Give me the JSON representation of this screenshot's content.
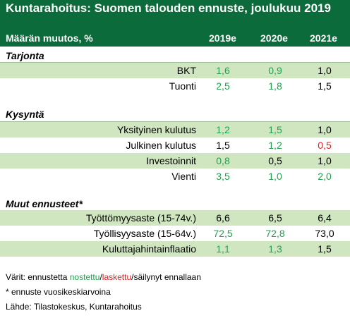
{
  "title": "Kuntarahoitus: Suomen talouden ennuste, joulukuu 2019",
  "subheader": "Määrän muutos, %",
  "columns": [
    "2019e",
    "2020e",
    "2021e"
  ],
  "sections": [
    {
      "name": "Tarjonta",
      "rows": [
        {
          "label": "BKT",
          "values": [
            "1,6",
            "0,9",
            "1,0"
          ],
          "status": [
            "up",
            "up",
            "same"
          ]
        },
        {
          "label": "Tuonti",
          "values": [
            "2,5",
            "1,8",
            "1,5"
          ],
          "status": [
            "up",
            "up",
            "same"
          ]
        }
      ]
    },
    {
      "name": "Kysyntä",
      "rows": [
        {
          "label": "Yksityinen kulutus",
          "values": [
            "1,2",
            "1,5",
            "1,0"
          ],
          "status": [
            "up",
            "up",
            "same"
          ]
        },
        {
          "label": "Julkinen kulutus",
          "values": [
            "1,5",
            "1,2",
            "0,5"
          ],
          "status": [
            "same",
            "up",
            "down"
          ]
        },
        {
          "label": "Investoinnit",
          "values": [
            "0,8",
            "0,5",
            "1,0"
          ],
          "status": [
            "up",
            "same",
            "same"
          ]
        },
        {
          "label": "Vienti",
          "values": [
            "3,5",
            "1,0",
            "2,0"
          ],
          "status": [
            "up",
            "up",
            "up"
          ]
        }
      ]
    },
    {
      "name": "Muut ennusteet*",
      "rows": [
        {
          "label": "Työttömyysaste (15-74v.)",
          "values": [
            "6,6",
            "6,5",
            "6,4"
          ],
          "status": [
            "same",
            "same",
            "same"
          ]
        },
        {
          "label": "Työllisyysaste (15-64v.)",
          "values": [
            "72,5",
            "72,8",
            "73,0"
          ],
          "status": [
            "up",
            "up",
            "same"
          ]
        },
        {
          "label": "Kuluttajahintainflaatio",
          "values": [
            "1,1",
            "1,3",
            "1,5"
          ],
          "status": [
            "up",
            "up",
            "same"
          ]
        }
      ]
    }
  ],
  "legend": {
    "prefix": "Värit: ennustetta ",
    "raised": "nostettu",
    "sep1": "/",
    "lowered": "laskettu",
    "sep2": "/",
    "kept": "säilynyt ennallaan"
  },
  "footnote": "* ennuste vuosikeskiarvoina",
  "source": "Lähde: Tilastokeskus, Kuntarahoitus",
  "colors": {
    "header_bg": "#0b6b3a",
    "row_shade": "#cfe6c0",
    "raised": "#22a050",
    "lowered": "#e02020",
    "kept": "#000000"
  }
}
